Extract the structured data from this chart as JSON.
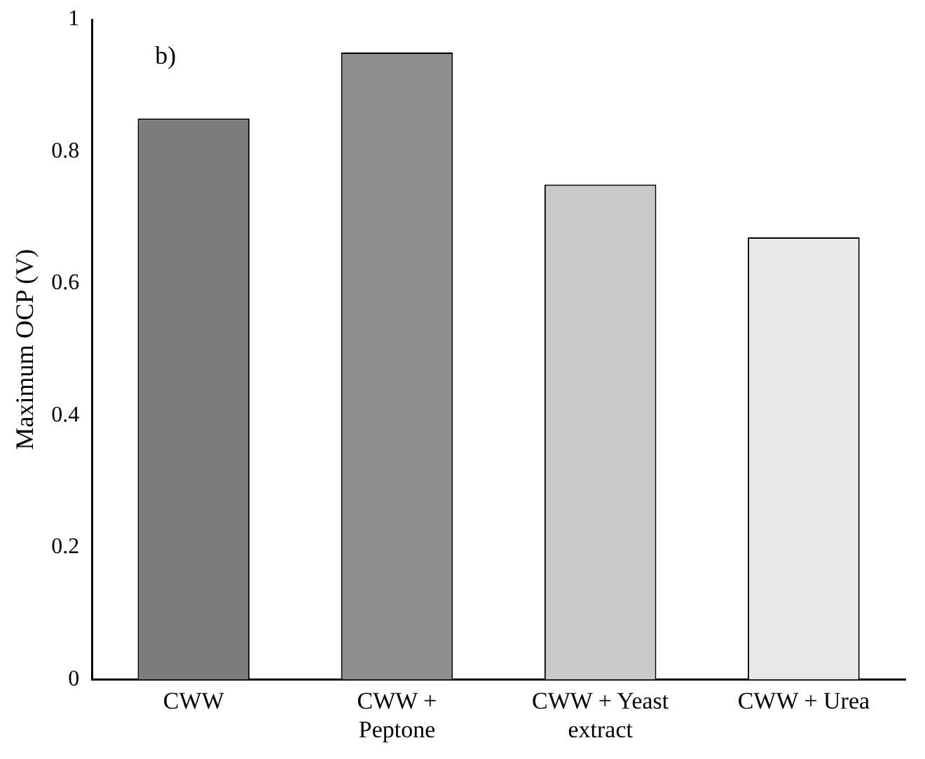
{
  "chart_data": {
    "type": "bar",
    "ylabel": "Maximum OCP (V)",
    "categories": [
      "CWW",
      "CWW + Peptone",
      "CWW + Yeast extract",
      "CWW + Urea"
    ],
    "values": [
      0.85,
      0.95,
      0.75,
      0.67
    ],
    "colors": [
      "#7d7d7d",
      "#8e8e8e",
      "#c9c9c9",
      "#e8e8e8"
    ],
    "ylim": [
      0,
      1
    ],
    "yticks": [
      0,
      0.2,
      0.4,
      0.6,
      0.8,
      1
    ],
    "grid": false,
    "legend": false,
    "annotations": [
      "b)"
    ]
  }
}
